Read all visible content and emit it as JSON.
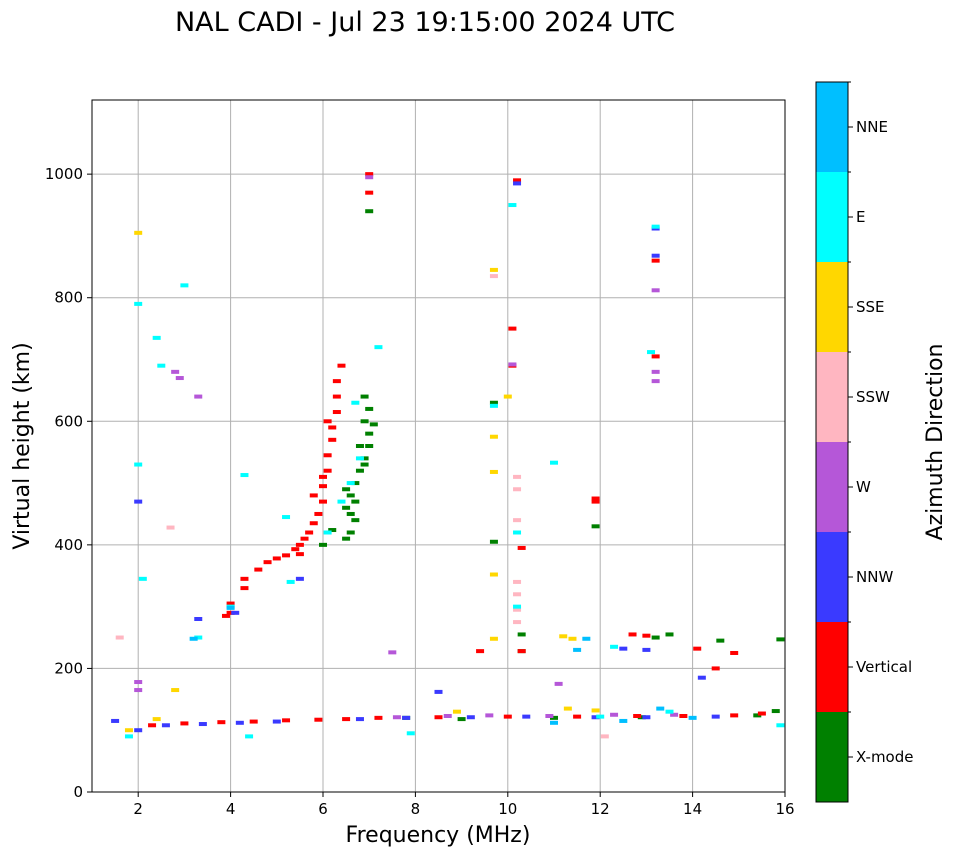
{
  "chart_data": {
    "type": "scatter",
    "title": "NAL CADI - Jul 23 19:15:00 2024 UTC",
    "xlabel": "Frequency (MHz)",
    "ylabel": "Virtual height (km)",
    "xlim": [
      1,
      16
    ],
    "ylim": [
      0,
      1120
    ],
    "x_ticks": [
      2,
      4,
      6,
      8,
      10,
      12,
      14,
      16
    ],
    "y_ticks": [
      0,
      200,
      400,
      600,
      800,
      1000
    ],
    "grid": true,
    "colorbar": {
      "title": "Azimuth Direction",
      "categories": [
        "X-mode",
        "Vertical",
        "NNW",
        "W",
        "SSW",
        "SSE",
        "E",
        "NNE"
      ],
      "colors": [
        "#008000",
        "#ff0000",
        "#3a3aff",
        "#b557d8",
        "#ffb6c1",
        "#ffd700",
        "#00ffff",
        "#00bfff"
      ]
    },
    "series": [
      {
        "name": "X-mode",
        "points": [
          [
            6.5,
            410
          ],
          [
            6.6,
            420
          ],
          [
            6.7,
            440
          ],
          [
            6.5,
            460
          ],
          [
            6.6,
            480
          ],
          [
            6.7,
            500
          ],
          [
            6.8,
            520
          ],
          [
            6.9,
            540
          ],
          [
            6.8,
            560
          ],
          [
            7.0,
            580
          ],
          [
            6.9,
            600
          ],
          [
            7.0,
            620
          ],
          [
            6.9,
            640
          ],
          [
            7.0,
            560
          ],
          [
            6.7,
            470
          ],
          [
            6.5,
            490
          ],
          [
            6.6,
            450
          ],
          [
            6.9,
            530
          ],
          [
            7.1,
            595
          ],
          [
            7.0,
            940
          ],
          [
            9.7,
            405
          ],
          [
            9.7,
            630
          ],
          [
            10.3,
            255
          ],
          [
            10.3,
            228
          ],
          [
            11.9,
            430
          ],
          [
            13.2,
            250
          ],
          [
            13.5,
            255
          ],
          [
            14.6,
            245
          ],
          [
            15.9,
            247
          ],
          [
            7.8,
            120
          ],
          [
            9.0,
            118
          ],
          [
            11.0,
            120
          ],
          [
            12.9,
            121
          ],
          [
            15.4,
            124
          ],
          [
            15.8,
            131
          ],
          [
            6.2,
            424
          ],
          [
            6.0,
            400
          ]
        ]
      },
      {
        "name": "Vertical",
        "points": [
          [
            2.3,
            108
          ],
          [
            3.0,
            111
          ],
          [
            3.8,
            113
          ],
          [
            4.5,
            114
          ],
          [
            5.2,
            116
          ],
          [
            5.9,
            117
          ],
          [
            6.5,
            118
          ],
          [
            7.2,
            120
          ],
          [
            8.5,
            121
          ],
          [
            10.0,
            122
          ],
          [
            11.5,
            122
          ],
          [
            12.8,
            123
          ],
          [
            13.8,
            123
          ],
          [
            14.9,
            124
          ],
          [
            15.5,
            127
          ],
          [
            4.0,
            290
          ],
          [
            4.0,
            305
          ],
          [
            3.9,
            285
          ],
          [
            4.3,
            330
          ],
          [
            4.3,
            345
          ],
          [
            4.6,
            360
          ],
          [
            4.8,
            372
          ],
          [
            5.0,
            378
          ],
          [
            5.2,
            383
          ],
          [
            5.4,
            393
          ],
          [
            5.5,
            400
          ],
          [
            5.6,
            410
          ],
          [
            5.7,
            420
          ],
          [
            5.8,
            435
          ],
          [
            5.9,
            450
          ],
          [
            6.0,
            470
          ],
          [
            6.0,
            495
          ],
          [
            6.1,
            520
          ],
          [
            6.1,
            545
          ],
          [
            6.2,
            570
          ],
          [
            6.2,
            590
          ],
          [
            6.3,
            615
          ],
          [
            6.3,
            640
          ],
          [
            6.3,
            665
          ],
          [
            6.4,
            690
          ],
          [
            5.8,
            480
          ],
          [
            6.0,
            510
          ],
          [
            6.1,
            600
          ],
          [
            5.5,
            385
          ],
          [
            7.0,
            1000
          ],
          [
            7.0,
            970
          ],
          [
            10.2,
            990
          ],
          [
            10.1,
            750
          ],
          [
            10.1,
            690
          ],
          [
            10.3,
            395
          ],
          [
            11.9,
            475
          ],
          [
            11.9,
            470
          ],
          [
            12.7,
            255
          ],
          [
            13.0,
            253
          ],
          [
            13.2,
            860
          ],
          [
            13.2,
            705
          ],
          [
            14.5,
            200
          ],
          [
            14.9,
            225
          ],
          [
            14.1,
            232
          ],
          [
            9.4,
            228
          ],
          [
            10.3,
            228
          ]
        ]
      },
      {
        "name": "NNW",
        "points": [
          [
            1.5,
            115
          ],
          [
            2.0,
            100
          ],
          [
            2.6,
            108
          ],
          [
            3.4,
            110
          ],
          [
            4.2,
            112
          ],
          [
            5.0,
            114
          ],
          [
            6.8,
            118
          ],
          [
            7.8,
            120
          ],
          [
            9.2,
            121
          ],
          [
            10.4,
            122
          ],
          [
            11.9,
            121
          ],
          [
            13.0,
            121
          ],
          [
            14.5,
            122
          ],
          [
            4.1,
            290
          ],
          [
            5.5,
            345
          ],
          [
            3.3,
            280
          ],
          [
            2.0,
            470
          ],
          [
            13.0,
            230
          ],
          [
            13.2,
            868
          ],
          [
            13.2,
            912
          ],
          [
            10.2,
            985
          ],
          [
            14.2,
            185
          ],
          [
            8.5,
            162
          ],
          [
            12.5,
            232
          ]
        ]
      },
      {
        "name": "W",
        "points": [
          [
            2.0,
            165
          ],
          [
            2.0,
            178
          ],
          [
            7.6,
            121
          ],
          [
            8.7,
            123
          ],
          [
            9.6,
            124
          ],
          [
            10.9,
            123
          ],
          [
            12.3,
            125
          ],
          [
            13.6,
            125
          ],
          [
            2.8,
            680
          ],
          [
            2.9,
            670
          ],
          [
            3.3,
            640
          ],
          [
            13.2,
            812
          ],
          [
            13.2,
            665
          ],
          [
            13.2,
            680
          ],
          [
            7.5,
            226
          ],
          [
            11.1,
            175
          ],
          [
            10.1,
            692
          ],
          [
            7.0,
            995
          ]
        ]
      },
      {
        "name": "SSW",
        "points": [
          [
            10.2,
            510
          ],
          [
            10.2,
            490
          ],
          [
            10.2,
            340
          ],
          [
            10.2,
            320
          ],
          [
            10.2,
            295
          ],
          [
            10.2,
            275
          ],
          [
            10.2,
            440
          ],
          [
            9.7,
            835
          ],
          [
            2.7,
            428
          ],
          [
            1.6,
            250
          ],
          [
            12.1,
            90
          ]
        ]
      },
      {
        "name": "SSE",
        "points": [
          [
            8.9,
            130
          ],
          [
            9.7,
            575
          ],
          [
            9.7,
            518
          ],
          [
            9.7,
            352
          ],
          [
            9.7,
            248
          ],
          [
            9.7,
            845
          ],
          [
            11.2,
            252
          ],
          [
            11.3,
            135
          ],
          [
            11.4,
            248
          ],
          [
            2.0,
            905
          ],
          [
            2.8,
            165
          ],
          [
            1.8,
            100
          ],
          [
            2.4,
            118
          ],
          [
            10.0,
            640
          ],
          [
            11.9,
            132
          ]
        ]
      },
      {
        "name": "E",
        "points": [
          [
            4.3,
            513
          ],
          [
            5.2,
            445
          ],
          [
            6.1,
            420
          ],
          [
            6.4,
            470
          ],
          [
            6.6,
            500
          ],
          [
            6.8,
            540
          ],
          [
            6.7,
            630
          ],
          [
            7.2,
            720
          ],
          [
            2.0,
            790
          ],
          [
            3.0,
            820
          ],
          [
            2.4,
            735
          ],
          [
            2.5,
            690
          ],
          [
            2.0,
            530
          ],
          [
            1.8,
            90
          ],
          [
            4.4,
            90
          ],
          [
            3.3,
            250
          ],
          [
            4.0,
            300
          ],
          [
            10.2,
            300
          ],
          [
            10.2,
            420
          ],
          [
            10.1,
            950
          ],
          [
            9.7,
            625
          ],
          [
            11.0,
            533
          ],
          [
            12.3,
            235
          ],
          [
            13.2,
            915
          ],
          [
            13.1,
            712
          ],
          [
            7.9,
            95
          ],
          [
            12.0,
            122
          ],
          [
            13.5,
            130
          ],
          [
            15.9,
            108
          ],
          [
            5.3,
            340
          ],
          [
            2.1,
            345
          ]
        ]
      },
      {
        "name": "NNE",
        "points": [
          [
            11.0,
            112
          ],
          [
            12.5,
            115
          ],
          [
            14.0,
            120
          ],
          [
            11.5,
            230
          ],
          [
            11.7,
            248
          ],
          [
            13.3,
            135
          ],
          [
            3.2,
            248
          ],
          [
            4.0,
            298
          ]
        ]
      }
    ]
  }
}
